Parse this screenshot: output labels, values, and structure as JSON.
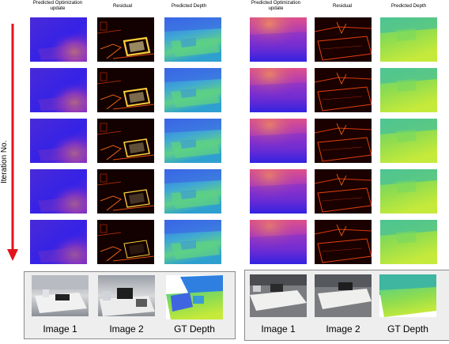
{
  "column_headers": {
    "update": "Predicted Optimization update",
    "residual": "Residual",
    "depth": "Predicted Depth"
  },
  "axis_label": "Iteration No.",
  "bottom_captions": [
    "Image 1",
    "Image 2",
    "GT Depth"
  ],
  "colors": {
    "arrow": "#e1141c",
    "update_low": "#3a22d8",
    "update_high": "#f3a23a",
    "residual_bg": "#140000",
    "residual_edge": "#ff7a1a",
    "depth_far": "#3f7ee9",
    "depth_near": "#a8e63b"
  },
  "iterations": 5
}
